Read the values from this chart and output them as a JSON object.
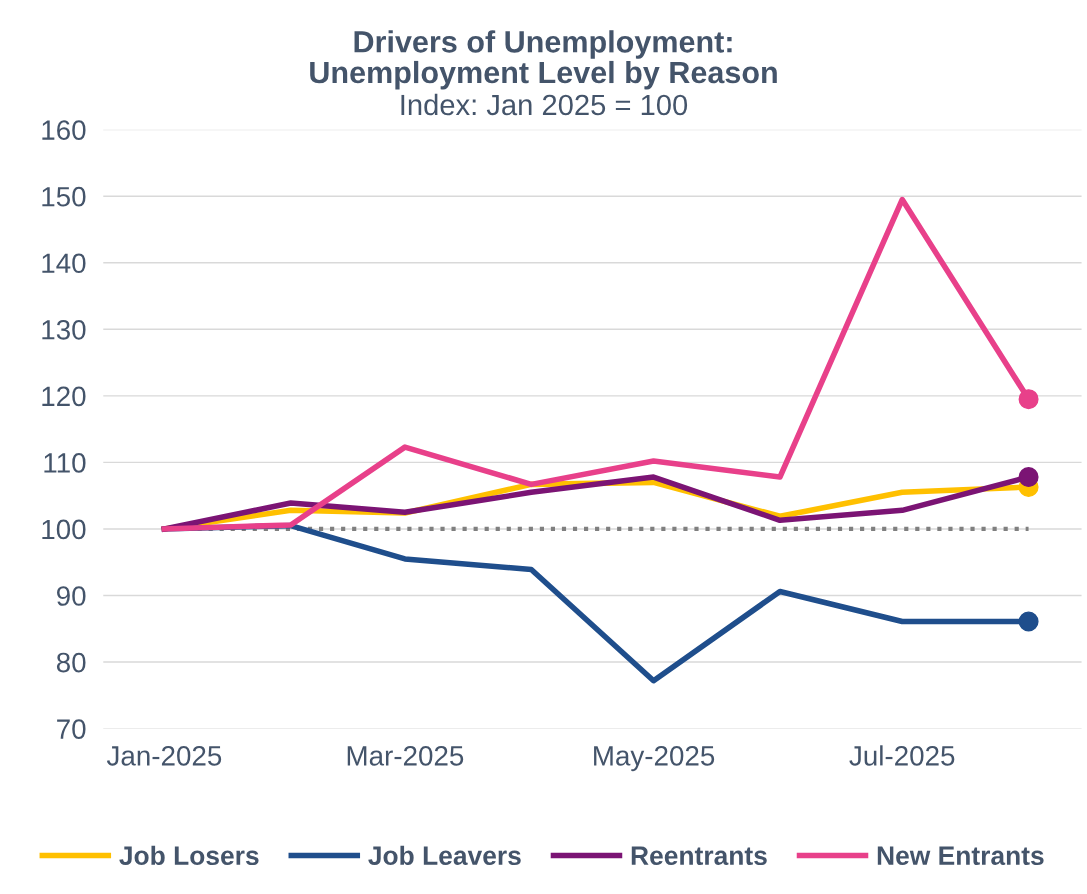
{
  "chart_data": {
    "type": "line",
    "title": "Drivers of Unemployment:\nUnemployment Level by Reason",
    "subtitle": "Index: Jan 2025 = 100",
    "x": [
      "2025-01",
      "2025-02",
      "2025-03",
      "2025-04",
      "2025-05",
      "2025-06",
      "2025-07",
      "2025-08"
    ],
    "series": [
      {
        "name": "Job Losers",
        "color": "#ffc000",
        "values": [
          100,
          102.8,
          102.4,
          106.7,
          107,
          101.9,
          105.5,
          106.3
        ]
      },
      {
        "name": "Job Leavers",
        "color": "#1f4e8c",
        "values": [
          100,
          100.5,
          95.5,
          93.9,
          77.2,
          90.6,
          86.1,
          86.1
        ]
      },
      {
        "name": "Reentrants",
        "color": "#7b1474",
        "values": [
          100,
          103.9,
          102.5,
          105.5,
          107.8,
          101.3,
          102.8,
          107.8
        ]
      },
      {
        "name": "New Entrants",
        "color": "#e8408a",
        "values": [
          100,
          100.6,
          112.3,
          106.7,
          110.2,
          107.8,
          149.5,
          119.5
        ]
      },
      {
        "type": "scatter",
        "marker": "circle",
        "x": [
          "2025-08",
          "2025-08",
          "2025-08",
          "2025-08"
        ],
        "values": [
          106.3,
          86.1,
          107.8,
          119.5
        ],
        "colors": [
          "#ffc000",
          "#1f4e8c",
          "#7b1474",
          "#e8408a"
        ]
      }
    ],
    "ref_lines": [
      {
        "axis": "y",
        "value": 100,
        "color": "#7f7f7f",
        "line_style": "dotted"
      }
    ],
    "xlim": [
      "2024-12-17",
      "2025-08-14"
    ],
    "xticks": [
      {
        "value": "2025-01",
        "label": "Jan-2025"
      },
      {
        "value": "2025-03",
        "label": "Mar-2025"
      },
      {
        "value": "2025-05",
        "label": "May-2025"
      },
      {
        "value": "2025-07",
        "label": "Jul-2025"
      }
    ],
    "ylim": [
      70,
      160
    ],
    "yticks": [
      70,
      80,
      90,
      100,
      110,
      120,
      130,
      140,
      150,
      160
    ],
    "grid": "y",
    "legend": "bottom",
    "marker": "none",
    "line_style": "solid"
  }
}
